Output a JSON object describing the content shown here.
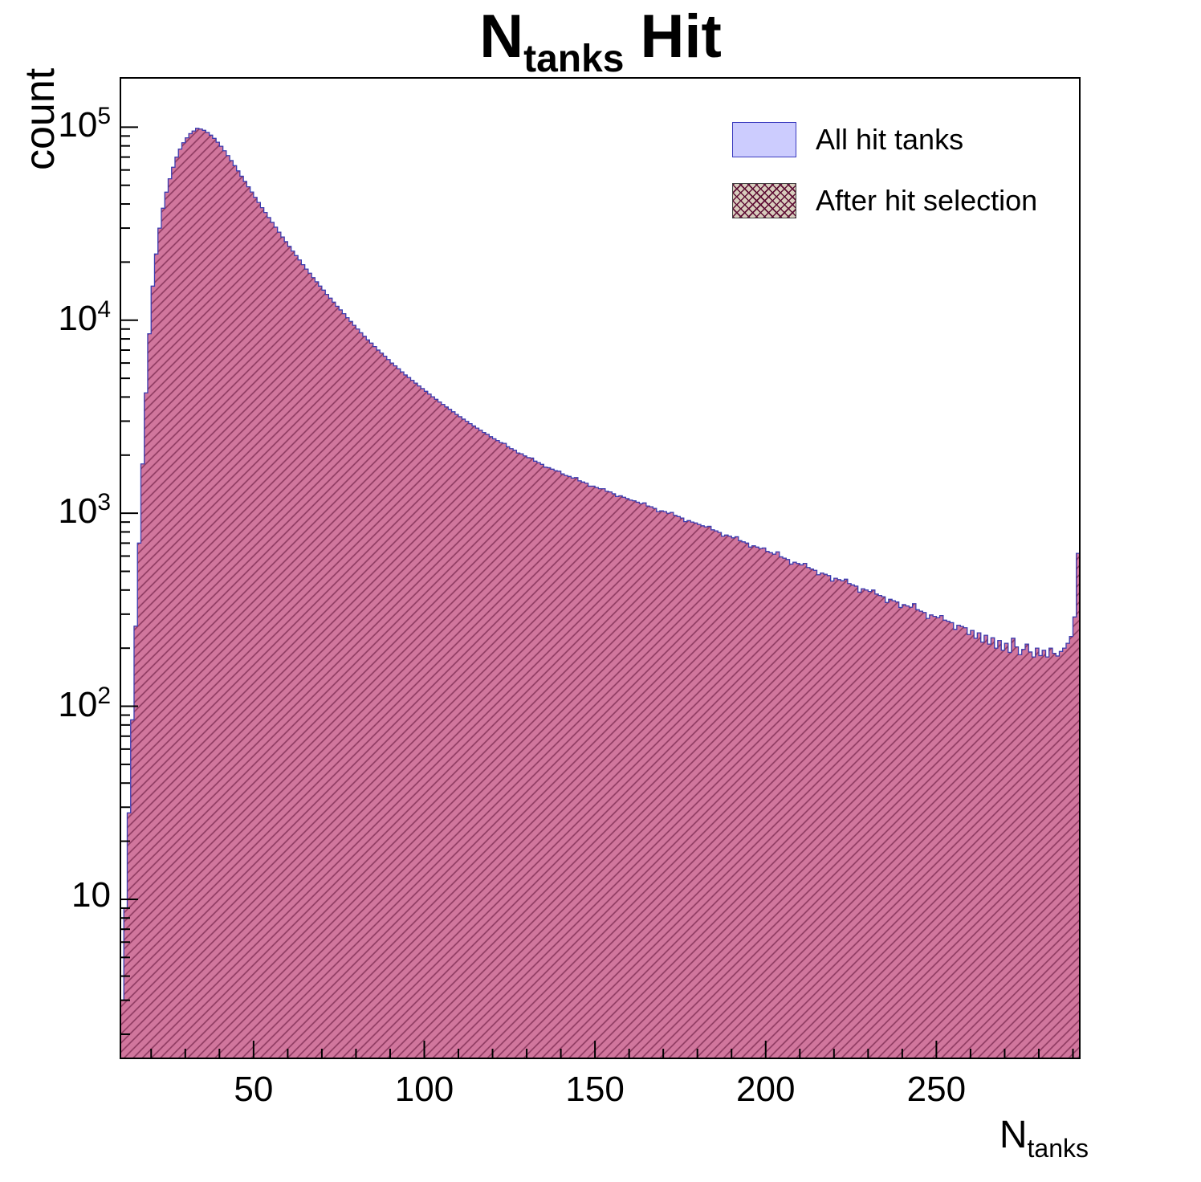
{
  "title": {
    "prefix": "N",
    "sub": "tanks",
    "suffix": "Hit"
  },
  "axes": {
    "y_label": "count",
    "x_label_prefix": "N",
    "x_label_sub": "tanks"
  },
  "legend": {
    "entries": [
      {
        "label": "All hit tanks"
      },
      {
        "label": "After hit selection"
      }
    ]
  },
  "colors": {
    "all_fill": "#ccccfe",
    "all_border": "#3b3bbe",
    "after_fill": "#d2688c",
    "after_hatch": "#5e0f35",
    "after_border": "#3c3cae",
    "legend_hatch_base": "#d8cdbd",
    "axis": "#000000"
  },
  "chart_data": {
    "type": "bar",
    "subtype": "histogram",
    "title": "N_tanks Hit",
    "xlabel": "N_tanks",
    "ylabel": "count",
    "yscale": "log",
    "grid": false,
    "legend_position": "top-right",
    "bin_start": 11,
    "bin_width": 1,
    "xlim": [
      11,
      292
    ],
    "ylim": [
      1.5,
      180000
    ],
    "x_major_ticks": [
      50,
      100,
      150,
      200,
      250
    ],
    "x_minor_step": 10,
    "y_decade_ticks": [
      10,
      100,
      1000,
      10000,
      100000
    ],
    "series": [
      {
        "name": "All hit tanks",
        "style": "solid-fill"
      },
      {
        "name": "After hit selection",
        "style": "hatched-fill"
      }
    ],
    "counts": [
      3,
      9,
      28,
      85,
      260,
      700,
      1800,
      4200,
      8500,
      15000,
      22000,
      30000,
      38000,
      46000,
      54000,
      62000,
      70000,
      77000,
      83000,
      88000,
      92500,
      95500,
      98500,
      97800,
      96200,
      93800,
      90800,
      87400,
      83600,
      79600,
      75400,
      71200,
      67100,
      63100,
      59300,
      55700,
      52300,
      49100,
      46100,
      43300,
      40700,
      38300,
      36100,
      34000,
      32100,
      30300,
      28600,
      27000,
      25500,
      24100,
      22800,
      21600,
      20500,
      19400,
      18400,
      17500,
      16600,
      15800,
      15000,
      14300,
      13600,
      13000,
      12400,
      11800,
      11300,
      10800,
      10300,
      9850,
      9400,
      9000,
      8600,
      8250,
      7900,
      7600,
      7300,
      7000,
      6750,
      6500,
      6250,
      6000,
      5800,
      5600,
      5400,
      5200,
      5050,
      4880,
      4720,
      4560,
      4420,
      4280,
      4140,
      4010,
      3890,
      3770,
      3660,
      3550,
      3450,
      3350,
      3250,
      3160,
      3070,
      2990,
      2910,
      2830,
      2760,
      2690,
      2620,
      2560,
      2490,
      2430,
      2380,
      2320,
      2300,
      2210,
      2160,
      2120,
      2050,
      2030,
      1980,
      1940,
      1930,
      1860,
      1830,
      1790,
      1730,
      1720,
      1690,
      1660,
      1650,
      1600,
      1570,
      1550,
      1520,
      1530,
      1470,
      1450,
      1430,
      1380,
      1380,
      1360,
      1340,
      1340,
      1300,
      1290,
      1260,
      1220,
      1230,
      1210,
      1190,
      1170,
      1160,
      1140,
      1120,
      1130,
      1090,
      1080,
      1060,
      1020,
      1030,
      1020,
      1000,
      1010,
      975,
      960,
      945,
      905,
      915,
      900,
      890,
      875,
      860,
      850,
      855,
      820,
      810,
      795,
      760,
      770,
      760,
      745,
      755,
      720,
      710,
      700,
      668,
      678,
      667,
      656,
      660,
      634,
      624,
      614,
      630,
      594,
      585,
      575,
      545,
      557,
      548,
      540,
      550,
      523,
      514,
      506,
      480,
      490,
      483,
      475,
      445,
      460,
      453,
      446,
      455,
      432,
      425,
      419,
      390,
      406,
      400,
      393,
      400,
      381,
      375,
      369,
      345,
      358,
      352,
      347,
      325,
      336,
      331,
      326,
      340,
      316,
      311,
      306,
      285,
      297,
      292,
      288,
      295,
      279,
      275,
      271,
      250,
      263,
      259,
      255,
      235,
      247,
      225,
      240,
      215,
      233,
      210,
      226,
      200,
      219,
      195,
      212,
      190,
      225,
      203,
      185,
      197,
      210,
      191,
      180,
      200,
      183,
      195,
      180,
      200,
      188,
      182,
      192,
      200,
      212,
      230,
      290,
      620
    ]
  }
}
